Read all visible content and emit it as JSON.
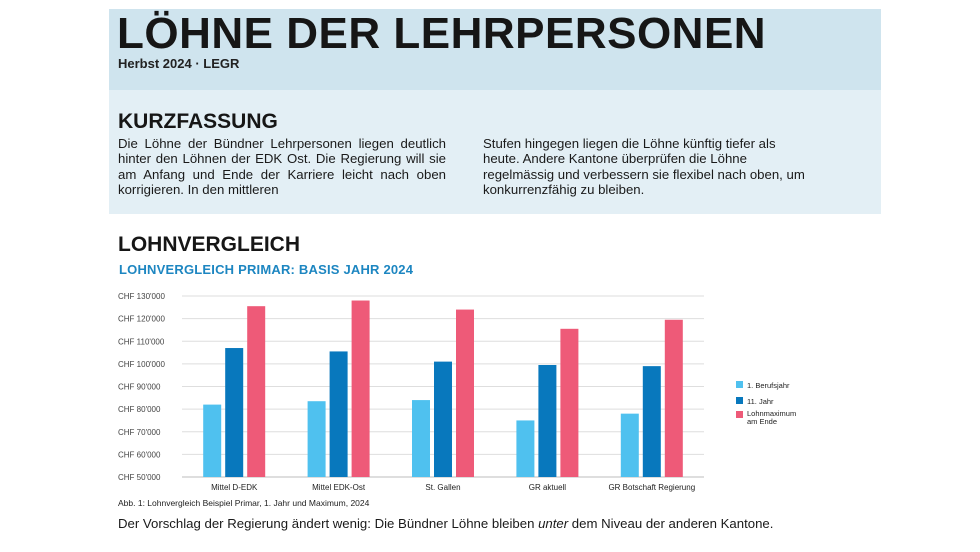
{
  "header": {
    "title": "LÖHNE DER LEHRPERSONEN",
    "subtitle": "Herbst 2024 · LEGR"
  },
  "summary": {
    "heading": "KURZFASSUNG",
    "col1": "Die Löhne der Bündner Lehrpersonen liegen deutlich hinter den Löhnen der EDK Ost. Die Regierung will sie am Anfang und Ende der Karriere leicht nach oben korrigieren. In den mittleren",
    "col2": "Stufen hingegen liegen die Löhne künftig tiefer als heute. Andere Kantone überprüfen die Löhne regelmässig und verbessern sie flexibel nach oben, um konkurrenzfähig zu bleiben."
  },
  "section": {
    "heading": "LOHNVERGLEICH",
    "chart_title": "LOHNVERGLEICH PRIMAR: BASIS JAHR 2024",
    "caption": "Abb. 1: Lohnvergleich Beispiel Primar, 1. Jahr und Maximum, 2024",
    "closing_before": "Der Vorschlag der Regierung ändert wenig: Die Bündner Löhne bleiben ",
    "closing_emph": "unter",
    "closing_after": " dem Niveau der anderen Kantone."
  },
  "colors": {
    "light_blue": "#4fc1ef",
    "dark_blue": "#0878bd",
    "pink": "#ee5a78",
    "title_blue": "#1d86c1"
  },
  "chart_data": {
    "type": "bar",
    "categories": [
      "Mittel D-EDK",
      "Mittel EDK-Ost",
      "St. Gallen",
      "GR aktuell",
      "GR Botschaft Regierung"
    ],
    "series": [
      {
        "name": "1. Berufsjahr",
        "values": [
          82000,
          83500,
          84000,
          75000,
          78000
        ]
      },
      {
        "name": "11. Jahr",
        "values": [
          107000,
          105500,
          101000,
          99500,
          99000
        ]
      },
      {
        "name": "Lohnmaximum am Ende",
        "values": [
          125500,
          128000,
          124000,
          115500,
          119500
        ]
      }
    ],
    "y_ticks": [
      "CHF 50'000",
      "CHF 60'000",
      "CHF 70'000",
      "CHF 80'000",
      "CHF 90'000",
      "CHF 100'000",
      "CHF 110'000",
      "CHF 120'000",
      "CHF 130'000"
    ],
    "ylim": [
      50000,
      130000
    ],
    "grid": true,
    "legend_position": "right"
  }
}
